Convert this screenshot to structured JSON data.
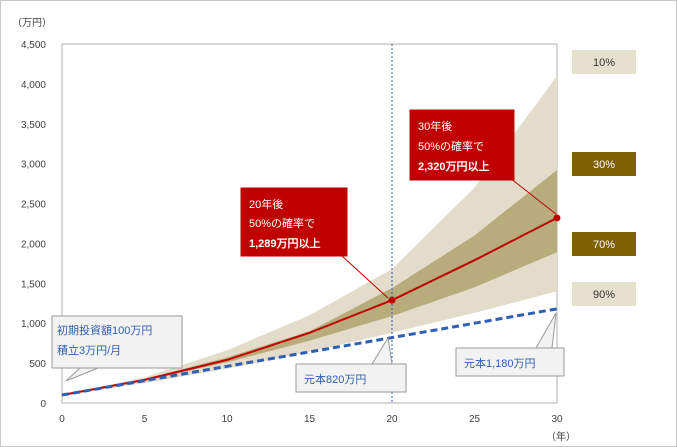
{
  "chart_data": {
    "type": "area",
    "y_unit_label": "（万円）",
    "x_unit_label": "（年）",
    "xlim": [
      0,
      30
    ],
    "ylim": [
      0,
      4500
    ],
    "x_ticks": [
      0,
      5,
      10,
      15,
      20,
      25,
      30
    ],
    "y_ticks": [
      0,
      500,
      1000,
      1500,
      2000,
      2500,
      3000,
      3500,
      4000,
      4500
    ],
    "y_tick_labels": [
      "0",
      "500",
      "1,000",
      "1,500",
      "2,000",
      "2,500",
      "3,000",
      "3,500",
      "4,000",
      "4,500"
    ],
    "x_tick_labels": [
      "0",
      "5",
      "10",
      "15",
      "20",
      "25",
      "30"
    ],
    "bands": [
      {
        "name": "90%-10%",
        "color": "#e3dccb",
        "x": [
          0,
          5,
          10,
          15,
          20,
          25,
          30
        ],
        "lower": [
          100,
          250,
          430,
          640,
          880,
          1130,
          1400
        ],
        "upper": [
          100,
          320,
          660,
          1100,
          1680,
          2700,
          4100
        ]
      },
      {
        "name": "70%-30%",
        "color": "#b8ac7d",
        "x": [
          0,
          5,
          10,
          15,
          20,
          25,
          30
        ],
        "lower": [
          100,
          280,
          510,
          780,
          1090,
          1450,
          1890
        ],
        "upper": [
          100,
          300,
          570,
          900,
          1440,
          2100,
          2920
        ]
      }
    ],
    "series": [
      {
        "name": "50%",
        "color": "#c00000",
        "style": "solid",
        "x": [
          0,
          5,
          10,
          15,
          20,
          25,
          30
        ],
        "values": [
          100,
          290,
          540,
          880,
          1289,
          1790,
          2320
        ]
      },
      {
        "name": "元本",
        "color": "#2f5fb3",
        "style": "dashed",
        "x": [
          0,
          5,
          10,
          15,
          20,
          25,
          30
        ],
        "values": [
          100,
          280,
          460,
          640,
          820,
          1000,
          1180
        ]
      }
    ],
    "marker_x": 20,
    "legend": [
      {
        "label": "10%",
        "bg": "#e6e0cf",
        "fg": "#333333"
      },
      {
        "label": "30%",
        "bg": "#7f6000",
        "fg": "#ffffff"
      },
      {
        "label": "70%",
        "bg": "#7f6000",
        "fg": "#ffffff"
      },
      {
        "label": "90%",
        "bg": "#e6e0cf",
        "fg": "#333333"
      }
    ],
    "annotations": {
      "initial": {
        "line1": "初期投資額100万円",
        "line2": "積立3万円/月"
      },
      "principal20": {
        "text": "元本820万円"
      },
      "principal30": {
        "text": "元本1,180万円"
      },
      "median20": {
        "line1": "20年後",
        "line2": "50%の確率で",
        "line3": "1,289万円以上"
      },
      "median30": {
        "line1": "30年後",
        "line2": "50%の確率で",
        "line3": "2,320万円以上"
      }
    }
  }
}
